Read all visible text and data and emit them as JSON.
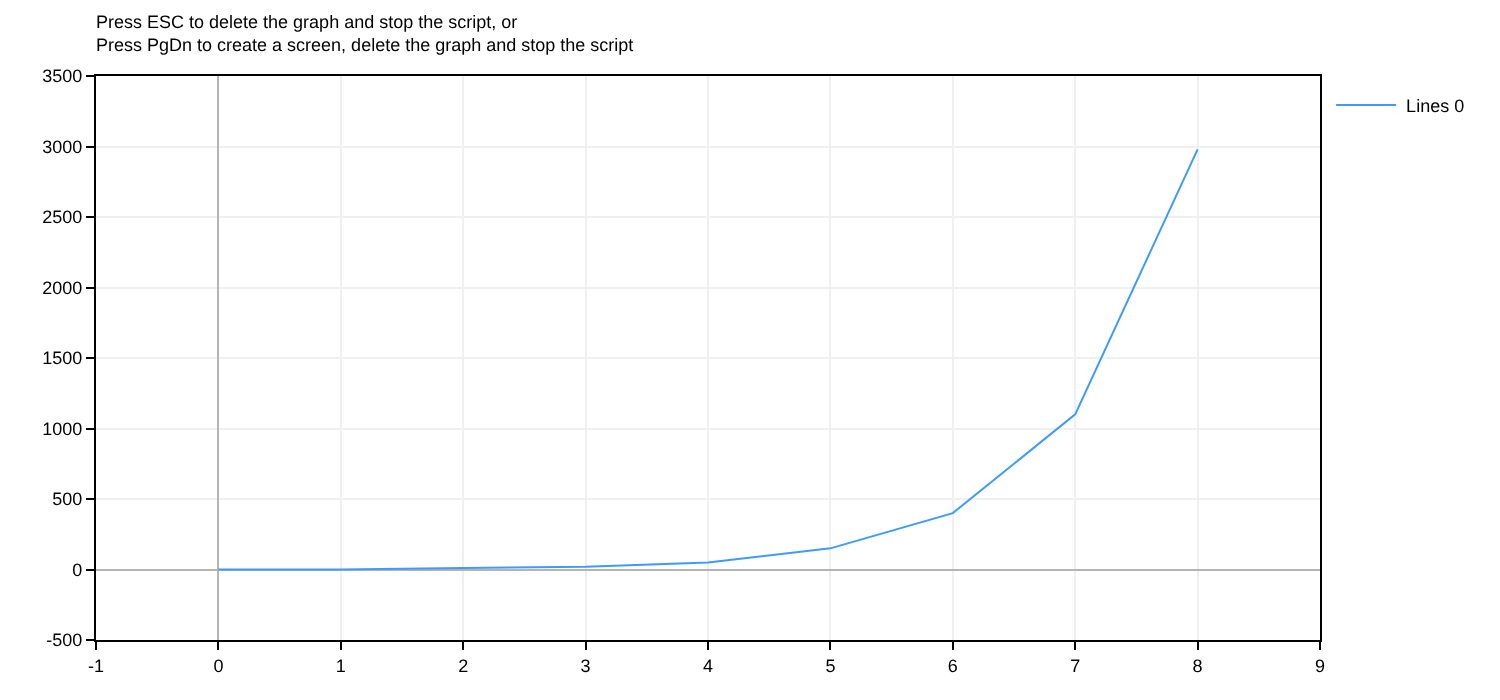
{
  "chart_data": {
    "type": "line",
    "title": "Press ESC to delete the graph and stop the script, or\nPress PgDn to create a screen, delete the graph and stop the script",
    "x": [
      0,
      1,
      2,
      3,
      4,
      5,
      6,
      7,
      8
    ],
    "series": [
      {
        "name": "Lines 0",
        "color": "#3d9bff",
        "values": [
          0,
          0,
          10,
          20,
          50,
          150,
          400,
          1100,
          2980
        ]
      }
    ],
    "xlim": [
      -1,
      9
    ],
    "xticks": [
      -1,
      0,
      1,
      2,
      3,
      4,
      5,
      6,
      7,
      8,
      9
    ],
    "ylim": [
      -500,
      3500
    ],
    "yticks": [
      -500,
      0,
      500,
      1000,
      1500,
      2000,
      2500,
      3000,
      3500
    ],
    "grid": true,
    "legend": "top right",
    "marker": "none",
    "line_style": "solid"
  }
}
